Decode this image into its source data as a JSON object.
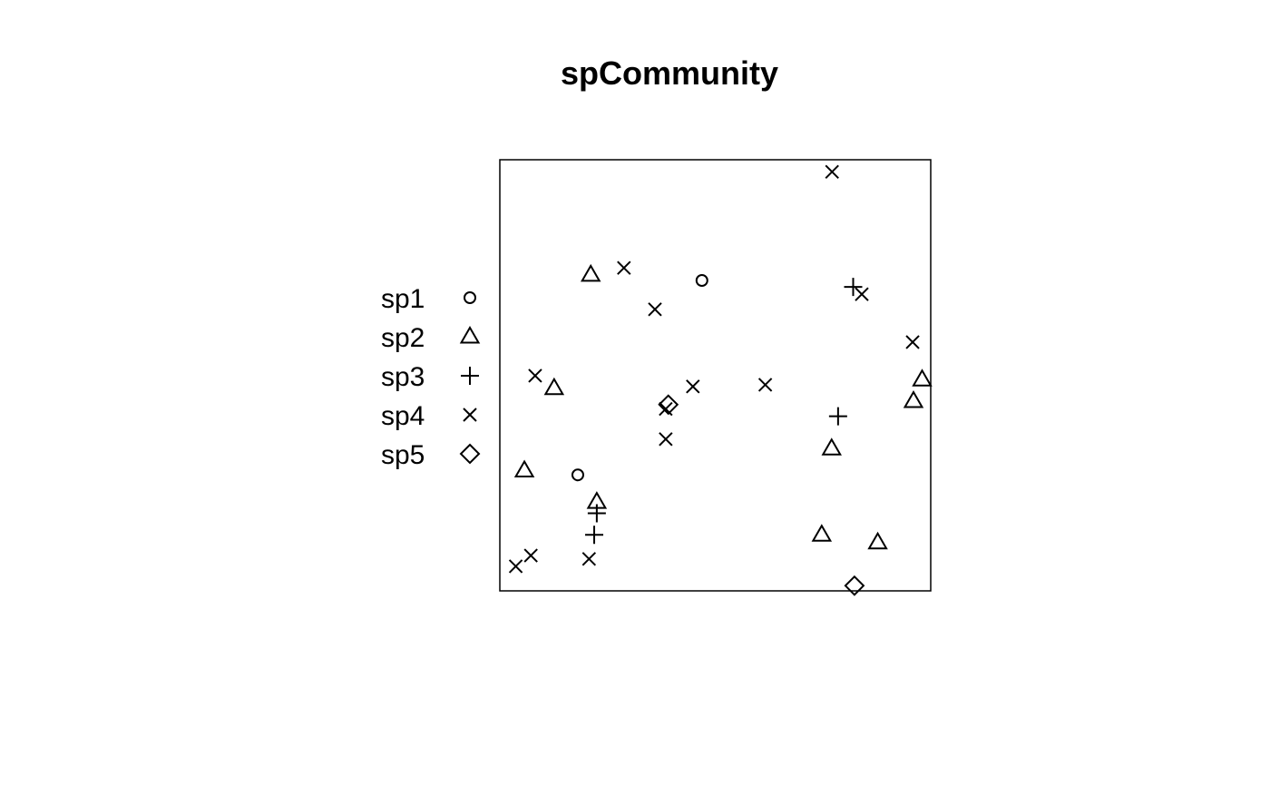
{
  "chart_data": {
    "type": "scatter",
    "title": "spCommunity",
    "xlabel": "",
    "ylabel": "",
    "xlim": [
      0,
      1
    ],
    "ylim": [
      0,
      1
    ],
    "grid": false,
    "axes_ticks": false,
    "box": true,
    "legend_position": "left",
    "color": "#000000",
    "series": [
      {
        "name": "sp1",
        "marker": "circle",
        "points": [
          [
            0.469,
            0.72
          ],
          [
            0.181,
            0.269
          ]
        ]
      },
      {
        "name": "sp2",
        "marker": "triangle",
        "points": [
          [
            0.211,
            0.733
          ],
          [
            0.126,
            0.47
          ],
          [
            0.057,
            0.279
          ],
          [
            0.225,
            0.206
          ],
          [
            0.77,
            0.33
          ],
          [
            0.96,
            0.44
          ],
          [
            0.98,
            0.49
          ],
          [
            0.747,
            0.13
          ],
          [
            0.877,
            0.112
          ]
        ]
      },
      {
        "name": "sp3",
        "marker": "plus",
        "points": [
          [
            0.82,
            0.705
          ],
          [
            0.785,
            0.405
          ],
          [
            0.225,
            0.18
          ],
          [
            0.219,
            0.13
          ]
        ]
      },
      {
        "name": "sp4",
        "marker": "x",
        "points": [
          [
            0.771,
            0.972
          ],
          [
            0.288,
            0.749
          ],
          [
            0.36,
            0.653
          ],
          [
            0.84,
            0.688
          ],
          [
            0.958,
            0.577
          ],
          [
            0.082,
            0.499
          ],
          [
            0.448,
            0.474
          ],
          [
            0.616,
            0.478
          ],
          [
            0.385,
            0.422
          ],
          [
            0.385,
            0.352
          ],
          [
            0.072,
            0.082
          ],
          [
            0.037,
            0.057
          ],
          [
            0.207,
            0.074
          ]
        ]
      },
      {
        "name": "sp5",
        "marker": "diamond",
        "points": [
          [
            0.391,
            0.432
          ],
          [
            0.823,
            0.012
          ]
        ]
      }
    ]
  }
}
